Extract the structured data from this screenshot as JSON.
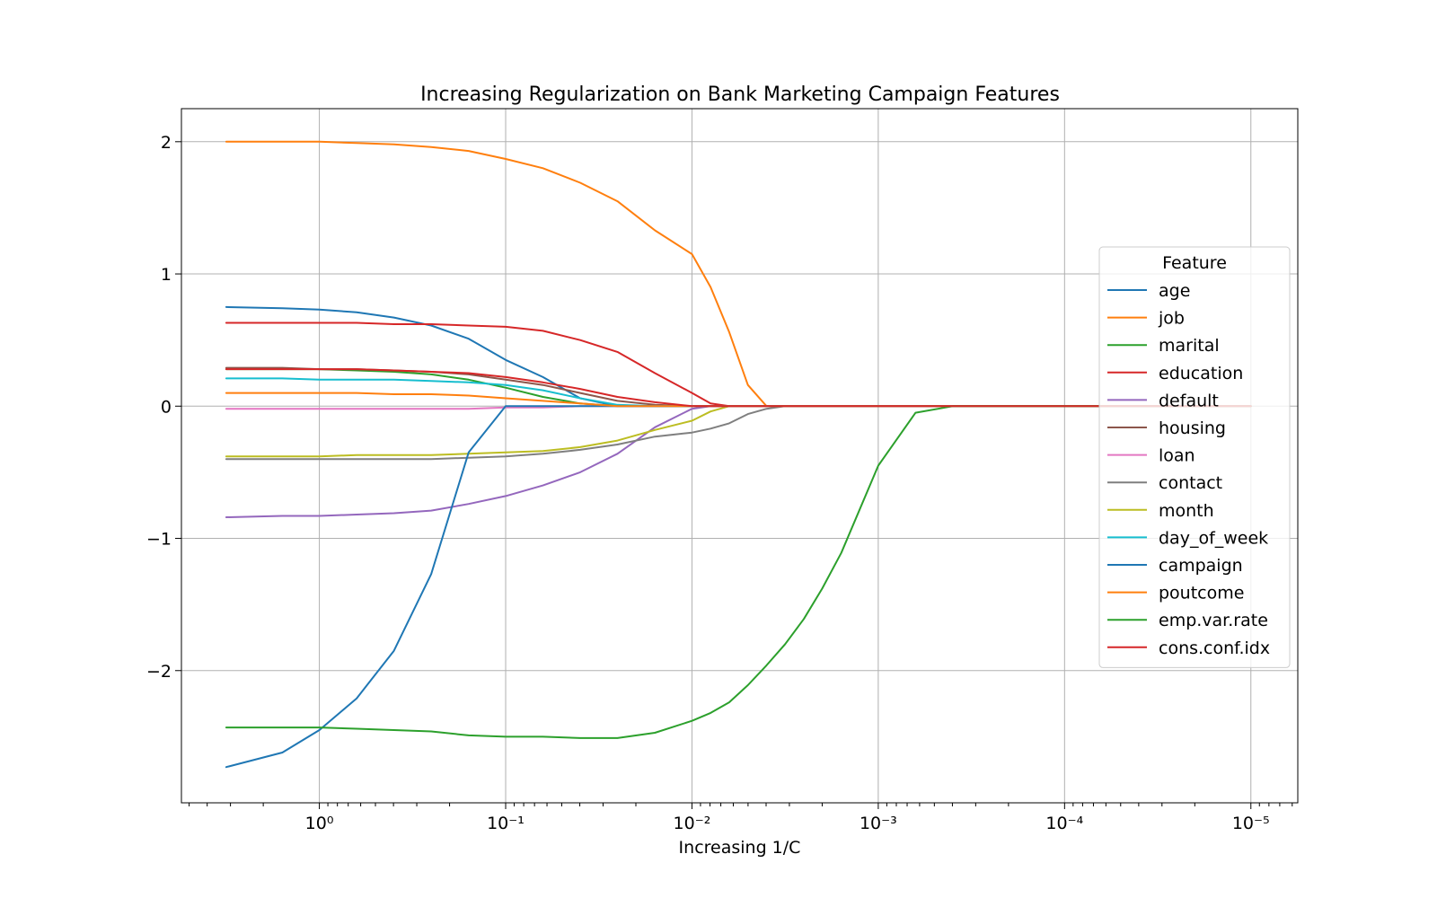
{
  "chart_data": {
    "type": "line",
    "title": "Increasing Regularization on Bank Marketing Campaign Features",
    "xlabel": "Increasing 1/C",
    "ylabel": "",
    "x_scale": "log",
    "x_inverted": true,
    "xlim": [
      5.5,
      5.6e-06
    ],
    "ylim": [
      -3.0,
      2.25
    ],
    "xticks": [
      {
        "value": 1,
        "label": "10⁰"
      },
      {
        "value": 0.1,
        "label": "10⁻¹"
      },
      {
        "value": 0.01,
        "label": "10⁻²"
      },
      {
        "value": 0.001,
        "label": "10⁻³"
      },
      {
        "value": 0.0001,
        "label": "10⁻⁴"
      },
      {
        "value": 1e-05,
        "label": "10⁻⁵"
      }
    ],
    "yticks": [
      {
        "value": 2,
        "label": "2"
      },
      {
        "value": 1,
        "label": "1"
      },
      {
        "value": 0,
        "label": "0"
      },
      {
        "value": -1,
        "label": "−1"
      },
      {
        "value": -2,
        "label": "−2"
      }
    ],
    "grid": true,
    "legend_title": "Feature",
    "legend_position": "right",
    "x": [
      3.16,
      1.58,
      1.0,
      0.631,
      0.398,
      0.251,
      0.158,
      0.1,
      0.0631,
      0.0398,
      0.0251,
      0.0158,
      0.01,
      0.00794,
      0.00631,
      0.00501,
      0.00398,
      0.00316,
      0.00251,
      0.002,
      0.00158,
      0.001,
      0.000631,
      0.000398,
      0.000316,
      0.000251,
      0.0002,
      0.000158,
      0.0001,
      6.31e-05,
      3.98e-05,
      2.51e-05,
      1.58e-05,
      1e-05
    ],
    "series": [
      {
        "name": "age",
        "color": "#1f77b4",
        "values": [
          0.75,
          0.74,
          0.73,
          0.71,
          0.67,
          0.61,
          0.51,
          0.35,
          0.22,
          0.06,
          0,
          0,
          0,
          0,
          0,
          0,
          0,
          0,
          0,
          0,
          0,
          0,
          0,
          0,
          0,
          0,
          0,
          0,
          0,
          0,
          0,
          0,
          0,
          0
        ]
      },
      {
        "name": "job",
        "color": "#ff7f0e",
        "values": [
          2.0,
          2.0,
          2.0,
          1.99,
          1.98,
          1.96,
          1.93,
          1.87,
          1.8,
          1.69,
          1.55,
          1.33,
          1.15,
          0.9,
          0.56,
          0.16,
          0,
          0,
          0,
          0,
          0,
          0,
          0,
          0,
          0,
          0,
          0,
          0,
          0,
          0,
          0,
          0,
          0,
          0
        ]
      },
      {
        "name": "marital",
        "color": "#2ca02c",
        "values": [
          0.28,
          0.28,
          0.28,
          0.27,
          0.26,
          0.24,
          0.2,
          0.14,
          0.07,
          0.02,
          0,
          0,
          0,
          0,
          0,
          0,
          0,
          0,
          0,
          0,
          0,
          0,
          0,
          0,
          0,
          0,
          0,
          0,
          0,
          0,
          0,
          0,
          0,
          0
        ]
      },
      {
        "name": "education",
        "color": "#d62728",
        "values": [
          0.63,
          0.63,
          0.63,
          0.63,
          0.62,
          0.62,
          0.61,
          0.6,
          0.57,
          0.5,
          0.41,
          0.25,
          0.1,
          0.02,
          0,
          0,
          0,
          0,
          0,
          0,
          0,
          0,
          0,
          0,
          0,
          0,
          0,
          0,
          0,
          0,
          0,
          0,
          0,
          0
        ]
      },
      {
        "name": "default",
        "color": "#9467bd",
        "values": [
          -0.84,
          -0.83,
          -0.83,
          -0.82,
          -0.81,
          -0.79,
          -0.74,
          -0.68,
          -0.6,
          -0.5,
          -0.36,
          -0.16,
          -0.02,
          0,
          0,
          0,
          0,
          0,
          0,
          0,
          0,
          0,
          0,
          0,
          0,
          0,
          0,
          0,
          0,
          0,
          0,
          0,
          0,
          0
        ]
      },
      {
        "name": "housing",
        "color": "#8c564b",
        "values": [
          0.29,
          0.29,
          0.28,
          0.28,
          0.27,
          0.26,
          0.24,
          0.2,
          0.16,
          0.1,
          0.04,
          0.01,
          0,
          0,
          0,
          0,
          0,
          0,
          0,
          0,
          0,
          0,
          0,
          0,
          0,
          0,
          0,
          0,
          0,
          0,
          0,
          0,
          0,
          0
        ]
      },
      {
        "name": "loan",
        "color": "#e377c2",
        "values": [
          -0.02,
          -0.02,
          -0.02,
          -0.02,
          -0.02,
          -0.02,
          -0.02,
          -0.01,
          -0.01,
          0,
          0,
          0,
          0,
          0,
          0,
          0,
          0,
          0,
          0,
          0,
          0,
          0,
          0,
          0,
          0,
          0,
          0,
          0,
          0,
          0,
          0,
          0,
          0,
          0
        ]
      },
      {
        "name": "contact",
        "color": "#7f7f7f",
        "values": [
          -0.4,
          -0.4,
          -0.4,
          -0.4,
          -0.4,
          -0.4,
          -0.39,
          -0.38,
          -0.36,
          -0.33,
          -0.29,
          -0.23,
          -0.2,
          -0.17,
          -0.13,
          -0.06,
          -0.02,
          0,
          0,
          0,
          0,
          0,
          0,
          0,
          0,
          0,
          0,
          0,
          0,
          0,
          0,
          0,
          0,
          0
        ]
      },
      {
        "name": "month",
        "color": "#bcbd22",
        "values": [
          -0.38,
          -0.38,
          -0.38,
          -0.37,
          -0.37,
          -0.37,
          -0.36,
          -0.35,
          -0.34,
          -0.31,
          -0.26,
          -0.18,
          -0.11,
          -0.04,
          0,
          0,
          0,
          0,
          0,
          0,
          0,
          0,
          0,
          0,
          0,
          0,
          0,
          0,
          0,
          0,
          0,
          0,
          0,
          0
        ]
      },
      {
        "name": "day_of_week",
        "color": "#17becf",
        "values": [
          0.21,
          0.21,
          0.2,
          0.2,
          0.2,
          0.19,
          0.18,
          0.16,
          0.12,
          0.06,
          0.01,
          0,
          0,
          0,
          0,
          0,
          0,
          0,
          0,
          0,
          0,
          0,
          0,
          0,
          0,
          0,
          0,
          0,
          0,
          0,
          0,
          0,
          0,
          0
        ]
      },
      {
        "name": "campaign",
        "color": "#1f77b4",
        "values": [
          -2.73,
          -2.62,
          -2.45,
          -2.21,
          -1.85,
          -1.27,
          -0.35,
          0,
          0,
          0,
          0,
          0,
          0,
          0,
          0,
          0,
          0,
          0,
          0,
          0,
          0,
          0,
          0,
          0,
          0,
          0,
          0,
          0,
          0,
          0,
          0,
          0,
          0,
          0
        ]
      },
      {
        "name": "poutcome",
        "color": "#ff7f0e",
        "values": [
          0.1,
          0.1,
          0.1,
          0.1,
          0.09,
          0.09,
          0.08,
          0.06,
          0.04,
          0.02,
          0,
          0,
          0,
          0,
          0,
          0,
          0,
          0,
          0,
          0,
          0,
          0,
          0,
          0,
          0,
          0,
          0,
          0,
          0,
          0,
          0,
          0,
          0,
          0
        ]
      },
      {
        "name": "emp.var.rate",
        "color": "#2ca02c",
        "values": [
          -2.43,
          -2.43,
          -2.43,
          -2.44,
          -2.45,
          -2.46,
          -2.49,
          -2.5,
          -2.5,
          -2.51,
          -2.51,
          -2.47,
          -2.38,
          -2.32,
          -2.24,
          -2.11,
          -1.96,
          -1.8,
          -1.61,
          -1.38,
          -1.11,
          -0.45,
          -0.05,
          0,
          0,
          0,
          0,
          0,
          0,
          0,
          0,
          0,
          0,
          0
        ]
      },
      {
        "name": "cons.conf.idx",
        "color": "#d62728",
        "values": [
          0.28,
          0.28,
          0.28,
          0.28,
          0.27,
          0.26,
          0.25,
          0.22,
          0.18,
          0.13,
          0.07,
          0.03,
          0,
          0,
          0,
          0,
          0,
          0,
          0,
          0,
          0,
          0,
          0,
          0,
          0,
          0,
          0,
          0,
          0,
          0,
          0,
          0,
          0,
          0
        ]
      }
    ]
  }
}
